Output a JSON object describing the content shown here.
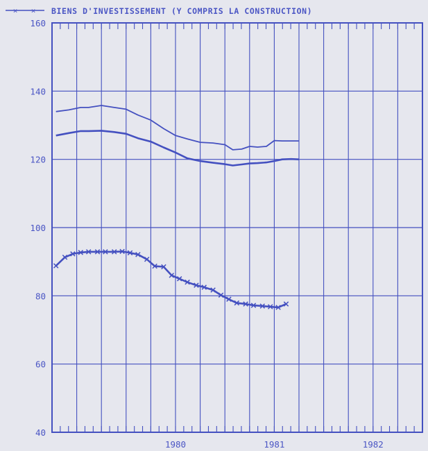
{
  "chart_data": {
    "type": "line",
    "legend_label": "BIENS D'INVESTISSEMENT (Y COMPRIS LA CONSTRUCTION)",
    "ylim": [
      40,
      160
    ],
    "y_ticks": [
      40,
      60,
      80,
      100,
      120,
      140,
      160
    ],
    "year_labels": [
      {
        "label": "1980",
        "at": 1980.5
      },
      {
        "label": "1981",
        "at": 1981.5
      },
      {
        "label": "1982",
        "at": 1982.5
      }
    ],
    "x_range": [
      1979.25,
      1983.0
    ],
    "grid": true,
    "colors": {
      "line": "#4450c0",
      "background": "#e6e7ee"
    },
    "series": [
      {
        "marker": "none",
        "x": [
          1979.29,
          1979.42,
          1979.54,
          1979.62,
          1979.75,
          1979.88,
          1980.0,
          1980.12,
          1980.25,
          1980.38,
          1980.5,
          1980.62,
          1980.75,
          1980.88,
          1981.0,
          1981.08,
          1981.17,
          1981.25,
          1981.33,
          1981.42,
          1981.5,
          1981.58,
          1981.67,
          1981.75
        ],
        "values": [
          134.0,
          134.5,
          135.2,
          135.2,
          135.8,
          135.2,
          134.7,
          133.0,
          131.5,
          129.0,
          127.0,
          126.0,
          125.0,
          124.8,
          124.3,
          122.8,
          123.0,
          123.8,
          123.6,
          123.8,
          125.5,
          125.4,
          125.4,
          125.4
        ]
      },
      {
        "marker": "none",
        "x": [
          1979.29,
          1979.42,
          1979.54,
          1979.62,
          1979.75,
          1979.88,
          1980.0,
          1980.12,
          1980.25,
          1980.38,
          1980.5,
          1980.62,
          1980.75,
          1980.88,
          1981.0,
          1981.08,
          1981.17,
          1981.25,
          1981.33,
          1981.42,
          1981.5,
          1981.58,
          1981.67,
          1981.75
        ],
        "values": [
          127.0,
          127.7,
          128.3,
          128.3,
          128.4,
          128.0,
          127.5,
          126.2,
          125.2,
          123.5,
          122.0,
          120.3,
          119.5,
          119.0,
          118.6,
          118.2,
          118.5,
          118.8,
          118.9,
          119.1,
          119.5,
          120.0,
          120.1,
          120.0
        ]
      },
      {
        "marker": "x",
        "x": [
          1979.29,
          1979.38,
          1979.46,
          1979.54,
          1979.62,
          1979.71,
          1979.79,
          1979.88,
          1979.96,
          1980.04,
          1980.12,
          1980.21,
          1980.29,
          1980.38,
          1980.46,
          1980.54,
          1980.62,
          1980.71,
          1980.79,
          1980.88,
          1980.96,
          1981.04,
          1981.12,
          1981.21,
          1981.29,
          1981.38,
          1981.46,
          1981.54,
          1981.62
        ],
        "values": [
          88.8,
          91.3,
          92.3,
          92.7,
          92.9,
          92.9,
          92.9,
          92.9,
          93.0,
          92.6,
          92.1,
          90.7,
          88.7,
          88.5,
          86.0,
          85.0,
          84.0,
          83.1,
          82.5,
          81.7,
          80.2,
          79.0,
          77.9,
          77.6,
          77.2,
          77.0,
          76.8,
          76.6,
          77.6
        ]
      }
    ]
  }
}
